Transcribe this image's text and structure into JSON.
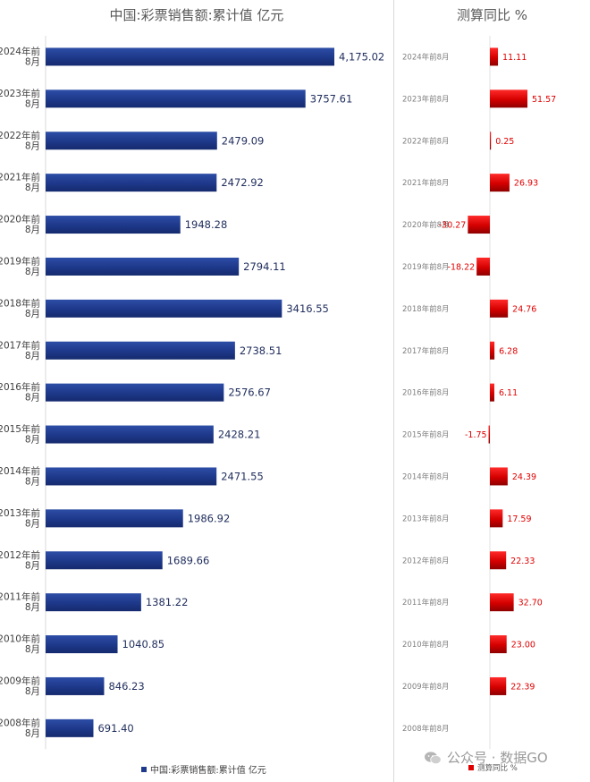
{
  "chart_data": [
    {
      "type": "bar",
      "orientation": "horizontal",
      "title": "中国:彩票销售额:累计值 亿元",
      "categories": [
        "2024年前8月",
        "2023年前8月",
        "2022年前8月",
        "2021年前8月",
        "2020年前8月",
        "2019年前8月",
        "2018年前8月",
        "2017年前8月",
        "2016年前8月",
        "2015年前8月",
        "2014年前8月",
        "2013年前8月",
        "2012年前8月",
        "2011年前8月",
        "2010年前8月",
        "2009年前8月",
        "2008年前8月"
      ],
      "value_labels": [
        "4,175.02",
        "3757.61",
        "2479.09",
        "2472.92",
        "1948.28",
        "2794.11",
        "3416.55",
        "2738.51",
        "2576.67",
        "2428.21",
        "2471.55",
        "1986.92",
        "1689.66",
        "1381.22",
        "1040.85",
        "846.23",
        "691.40"
      ],
      "series": [
        {
          "name": "中国:彩票销售额:累计值 亿元",
          "color": "#1f3a8c",
          "values": [
            4175.02,
            3757.61,
            2479.09,
            2472.92,
            1948.28,
            2794.11,
            3416.55,
            2738.51,
            2576.67,
            2428.21,
            2471.55,
            1986.92,
            1689.66,
            1381.22,
            1040.85,
            846.23,
            691.4
          ]
        }
      ],
      "legend_position": "bottom",
      "grid": false
    },
    {
      "type": "bar",
      "orientation": "horizontal",
      "title": "测算同比 %",
      "categories": [
        "2024年前8月",
        "2023年前8月",
        "2022年前8月",
        "2021年前8月",
        "2020年前8月",
        "2019年前8月",
        "2018年前8月",
        "2017年前8月",
        "2016年前8月",
        "2015年前8月",
        "2014年前8月",
        "2013年前8月",
        "2012年前8月",
        "2011年前8月",
        "2010年前8月",
        "2009年前8月",
        "2008年前8月"
      ],
      "value_labels": [
        "11.11",
        "51.57",
        "0.25",
        "26.93",
        "-30.27",
        "-18.22",
        "24.76",
        "6.28",
        "6.11",
        "-1.75",
        "24.39",
        "17.59",
        "22.33",
        "32.70",
        "23.00",
        "22.39",
        ""
      ],
      "series": [
        {
          "name": "测算同比 %",
          "color": "#e00000",
          "values": [
            11.11,
            51.57,
            0.25,
            26.93,
            -30.27,
            -18.22,
            24.76,
            6.28,
            6.11,
            -1.75,
            24.39,
            17.59,
            22.33,
            32.7,
            23.0,
            22.39,
            null
          ]
        }
      ],
      "legend_position": "bottom",
      "grid": false
    }
  ],
  "watermark": {
    "text": "公众号 · 数据GO",
    "icon": "wechat-icon"
  }
}
